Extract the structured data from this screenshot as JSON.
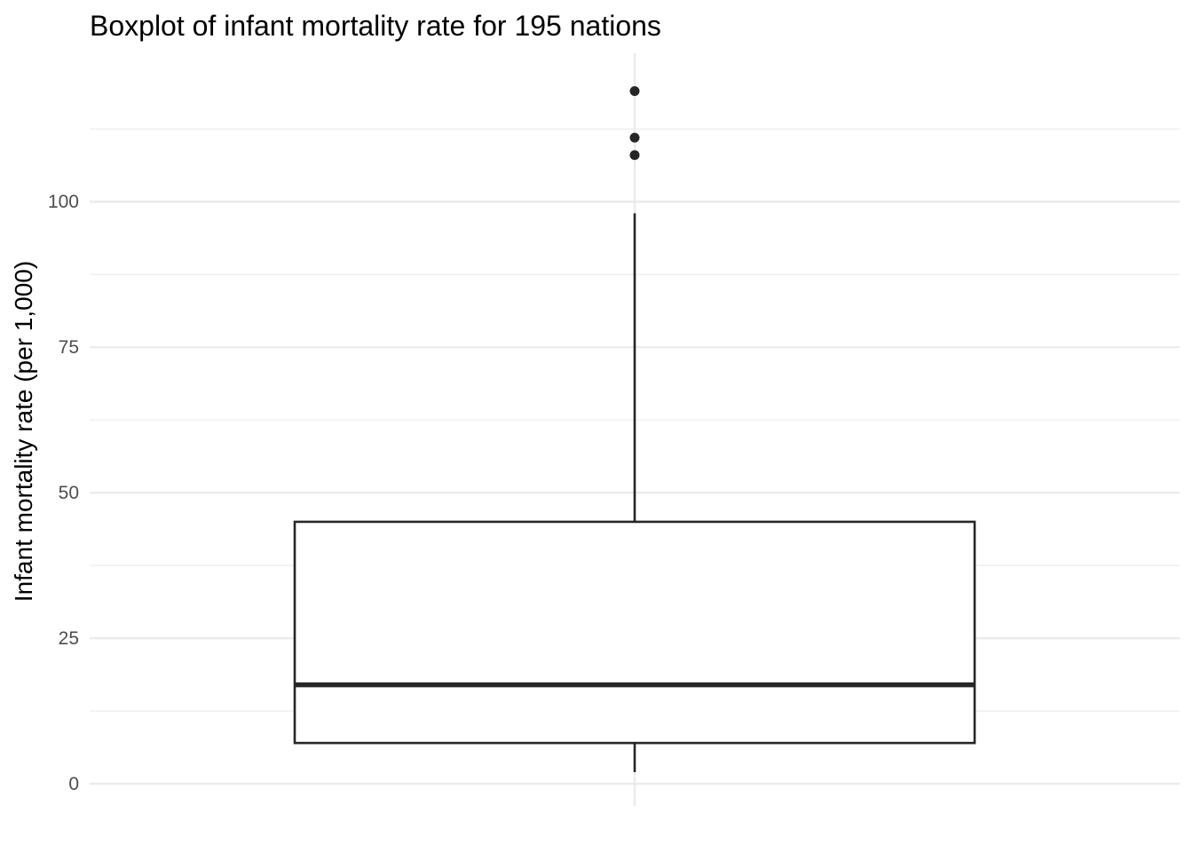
{
  "chart_data": {
    "type": "boxplot",
    "title": "Boxplot of infant mortality rate for 195 nations",
    "xlabel": "",
    "ylabel": "Infant mortality rate (per 1,000)",
    "ylim": [
      -3.8,
      125.5
    ],
    "yticks": [
      0,
      25,
      50,
      75,
      100
    ],
    "ytick_labels": [
      "0",
      "25",
      "50",
      "75",
      "100"
    ],
    "y_minor_grid": [
      12.5,
      37.5,
      62.5,
      87.5,
      112.5
    ],
    "grid": true,
    "box": {
      "whisker_low": 2,
      "q1": 7,
      "median": 17,
      "q3": 45,
      "whisker_high": 98
    },
    "outliers": [
      108,
      111,
      119
    ],
    "colors": {
      "stroke": "#262626",
      "fill": "#ffffff",
      "grid": "#ebebeb",
      "tick": "#4d4d4d"
    }
  }
}
